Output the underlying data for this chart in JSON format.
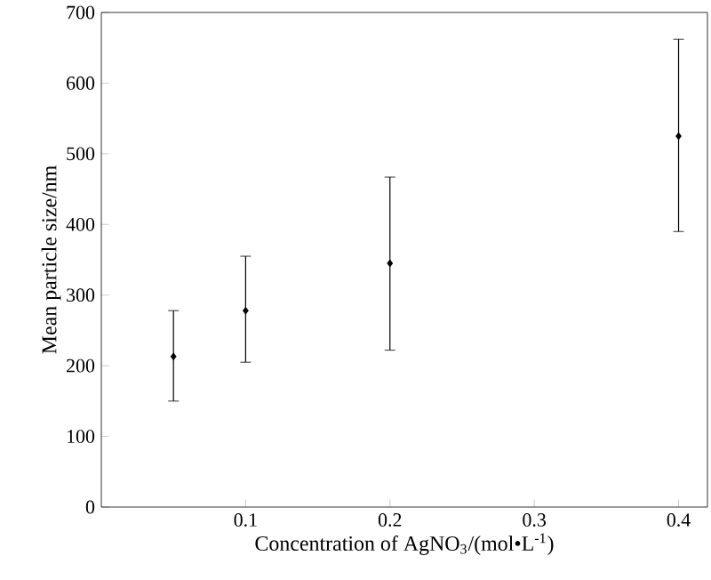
{
  "chart_data": {
    "type": "scatter",
    "xlabel": "Concentration of AgNO$_{3}$/(mol•L$^{-1}$)",
    "ylabel": "Mean particle size/nm",
    "x": [
      0.05,
      0.1,
      0.2,
      0.4
    ],
    "values": [
      213,
      278,
      345,
      525
    ],
    "errors": [
      [
        150,
        278
      ],
      [
        205,
        355
      ],
      [
        222,
        467
      ],
      [
        390,
        662
      ]
    ],
    "color": "#000000",
    "marker": "diamond",
    "grid": false,
    "xlim": [
      0,
      0.42
    ],
    "xticks": [
      0.1,
      0.2,
      0.3,
      0.4
    ],
    "ylim": [
      0,
      700
    ],
    "yticks": [
      0,
      100,
      200,
      300,
      400,
      500,
      600,
      700
    ]
  }
}
